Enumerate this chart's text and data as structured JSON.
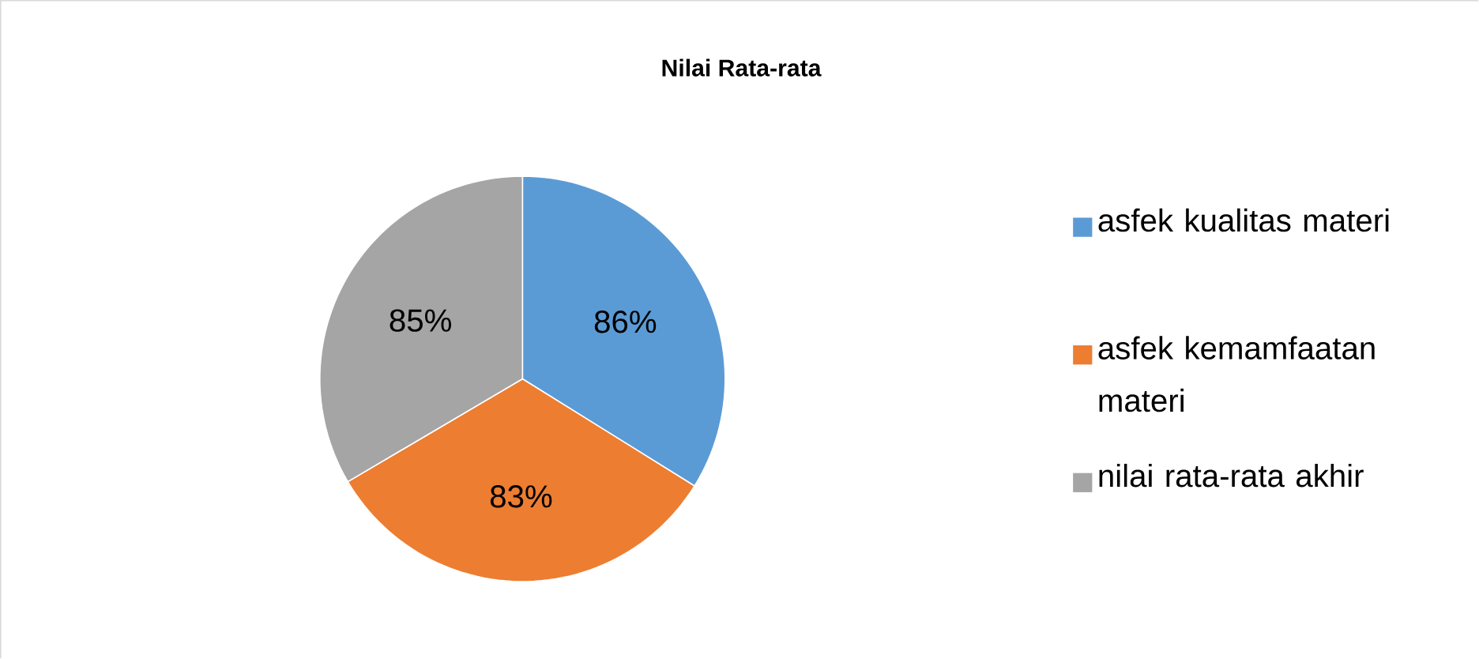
{
  "chart_data": {
    "type": "pie",
    "title": "Nilai Rata-rata",
    "categories": [
      "asfek kualitas materi",
      "asfek kemamfaatan materi",
      "nilai rata-rata akhir"
    ],
    "values": [
      86,
      83,
      85
    ],
    "value_labels": [
      "86%",
      "83%",
      "85%"
    ],
    "colors": [
      "#5b9bd5",
      "#ed7d31",
      "#a5a5a5"
    ],
    "legend": "right"
  }
}
